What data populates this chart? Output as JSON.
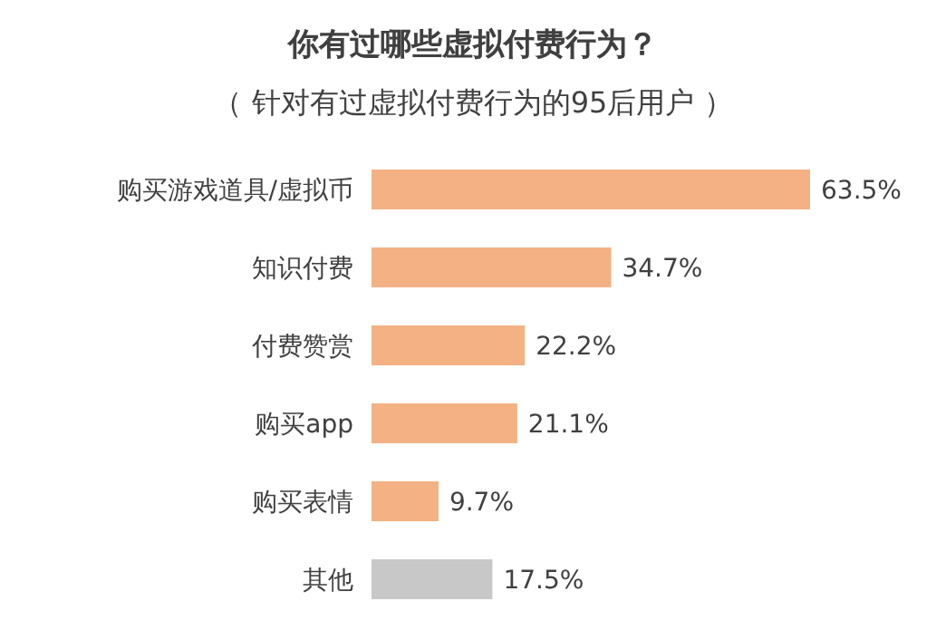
{
  "chart_data": {
    "type": "bar",
    "orientation": "horizontal",
    "title": "你有过哪些虚拟付费行为？",
    "subtitle": "（ 针对有过虚拟付费行为的95后用户 ）",
    "categories": [
      "购买游戏道具/虚拟币",
      "知识付费",
      "付费赞赏",
      "购买app",
      "购买表情",
      "其他"
    ],
    "values": [
      63.5,
      34.7,
      22.2,
      21.1,
      9.7,
      17.5
    ],
    "value_labels": [
      "63.5%",
      "34.7%",
      "22.2%",
      "21.1%",
      "9.7%",
      "17.5%"
    ],
    "colors": [
      "#f4b183",
      "#f4b183",
      "#f4b183",
      "#f4b183",
      "#f4b183",
      "#c8c8c8"
    ]
  }
}
